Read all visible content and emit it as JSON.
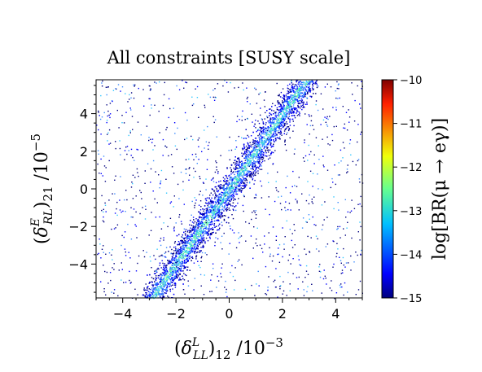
{
  "chart_data": {
    "type": "scatter",
    "title": "All constraints [SUSY scale]",
    "xlabel": "(δ^L_LL)_12 /10^-3",
    "ylabel": "(δ^E_RL)_21 /10^-5",
    "xlim": [
      -5,
      5
    ],
    "ylim": [
      -5.8,
      5.8
    ],
    "x_ticks": [
      -4,
      -2,
      0,
      2,
      4
    ],
    "y_ticks": [
      -4,
      -2,
      0,
      2,
      4
    ],
    "x_tick_labels": [
      "−4",
      "−2",
      "0",
      "2",
      "4"
    ],
    "y_tick_labels": [
      "−4",
      "−2",
      "0",
      "2",
      "4"
    ],
    "grid": false,
    "colorbar": {
      "label": "log[BR(μ → eγ)]",
      "range": [
        -15,
        -10
      ],
      "ticks": [
        -10,
        -11,
        -12,
        -13,
        -14,
        -15
      ],
      "tick_labels": [
        "−10",
        "−11",
        "−12",
        "−13",
        "−14",
        "−15"
      ],
      "colormap": "jet"
    },
    "trend": {
      "description_values": "band of points along y ≈ 2.0 · x, width ≈ ±1.0 in y, sparse scatter elsewhere",
      "slope": 2.0,
      "half_width_y": 1.0
    }
  }
}
